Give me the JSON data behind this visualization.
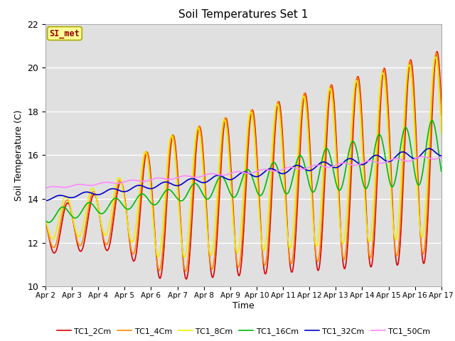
{
  "title": "Soil Temperatures Set 1",
  "xlabel": "Time",
  "ylabel": "Soil Temperature (C)",
  "ylim": [
    10,
    22
  ],
  "yticks": [
    10,
    12,
    14,
    16,
    18,
    20,
    22
  ],
  "xtick_labels": [
    "Apr 2",
    "Apr 3",
    "Apr 4",
    "Apr 5",
    "Apr 6",
    "Apr 7",
    "Apr 8",
    "Apr 9",
    "Apr 10",
    "Apr 11",
    "Apr 12",
    "Apr 13",
    "Apr 14",
    "Apr 15",
    "Apr 16",
    "Apr 17"
  ],
  "annotation_text": "SI_met",
  "annotation_facecolor": "#FFFF99",
  "annotation_edgecolor": "#AAAA00",
  "annotation_textcolor": "#990000",
  "bg_color": "#E0E0E0",
  "series_colors": [
    "#DD0000",
    "#FF8800",
    "#EEEE00",
    "#00BB00",
    "#0000CC",
    "#FF88FF"
  ],
  "series_labels": [
    "TC1_2Cm",
    "TC1_4Cm",
    "TC1_8Cm",
    "TC1_16Cm",
    "TC1_32Cm",
    "TC1_50Cm"
  ],
  "line_width": 1.2,
  "legend_ncol": 6
}
